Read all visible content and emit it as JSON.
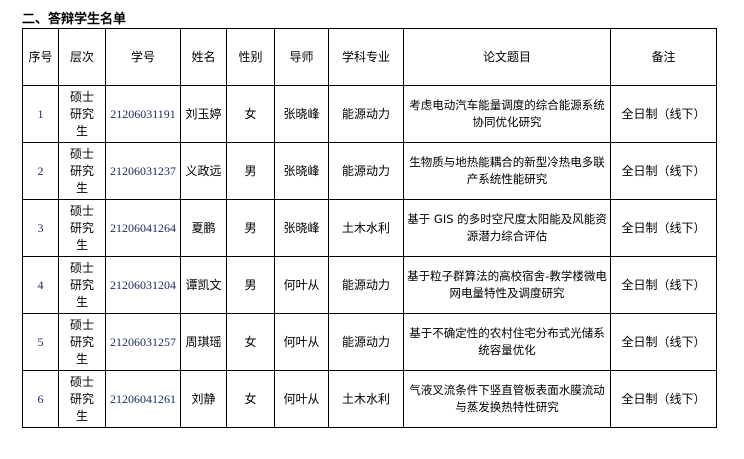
{
  "section_title": "二、答辩学生名单",
  "table": {
    "headers": [
      "序号",
      "层次",
      "学号",
      "姓名",
      "性别",
      "导师",
      "学科专业",
      "论文题目",
      "备注"
    ],
    "rows": [
      {
        "index": "1",
        "level": "硕士研究生",
        "student_id": "21206031191",
        "name": "刘玉婷",
        "gender": "女",
        "advisor": "张晓峰",
        "major": "能源动力",
        "thesis": "考虑电动汽车能量调度的综合能源系统协同优化研究",
        "note": "全日制（线下）"
      },
      {
        "index": "2",
        "level": "硕士研究生",
        "student_id": "21206031237",
        "name": "义政远",
        "gender": "男",
        "advisor": "张晓峰",
        "major": "能源动力",
        "thesis": "生物质与地热能耦合的新型冷热电多联产系统性能研究",
        "note": "全日制（线下）"
      },
      {
        "index": "3",
        "level": "硕士研究生",
        "student_id": "21206041264",
        "name": "夏鹏",
        "gender": "男",
        "advisor": "张晓峰",
        "major": "土木水利",
        "thesis": "基于 GIS 的多时空尺度太阳能及风能资源潜力综合评估",
        "note": "全日制（线下）"
      },
      {
        "index": "4",
        "level": "硕士研究生",
        "student_id": "21206031204",
        "name": "谭凯文",
        "gender": "男",
        "advisor": "何叶从",
        "major": "能源动力",
        "thesis": "基于粒子群算法的高校宿舍-教学楼微电网电量特性及调度研究",
        "note": "全日制（线下）"
      },
      {
        "index": "5",
        "level": "硕士研究生",
        "student_id": "21206031257",
        "name": "周琪瑶",
        "gender": "女",
        "advisor": "何叶从",
        "major": "能源动力",
        "thesis": "基于不确定性的农村住宅分布式光储系统容量优化",
        "note": "全日制（线下）"
      },
      {
        "index": "6",
        "level": "硕士研究生",
        "student_id": "21206041261",
        "name": "刘静",
        "gender": "女",
        "advisor": "何叶从",
        "major": "土木水利",
        "thesis": "气液叉流条件下竖直管板表面水膜流动与蒸发换热特性研究",
        "note": "全日制（线下）"
      }
    ]
  }
}
